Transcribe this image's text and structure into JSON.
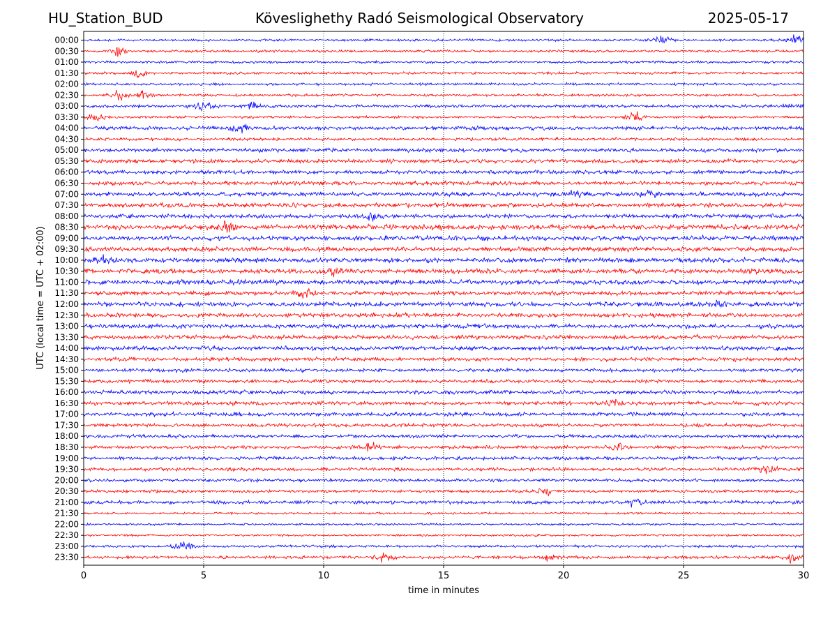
{
  "header": {
    "station": "HU_Station_BUD",
    "observatory": "Köveslighethy Radó Seismological Observatory",
    "date": "2025-05-17"
  },
  "chart_data": {
    "type": "line",
    "title": "Köveslighethy Radó Seismological Observatory",
    "xlabel": "time in minutes",
    "ylabel": "UTC (local time = UTC + 02:00)",
    "xlim": [
      0,
      30
    ],
    "xticks": [
      "0",
      "5",
      "10",
      "15",
      "20",
      "25",
      "30"
    ],
    "grid": "vertical dotted at x = 5, 10, 15, 20, 25",
    "series_colors": [
      "#0000ff",
      "#ff0000"
    ],
    "row_labels": [
      "00:00",
      "00:30",
      "01:00",
      "01:30",
      "02:00",
      "02:30",
      "03:00",
      "03:30",
      "04:00",
      "04:30",
      "05:00",
      "05:30",
      "06:00",
      "06:30",
      "07:00",
      "07:30",
      "08:00",
      "08:30",
      "09:00",
      "09:30",
      "10:00",
      "10:30",
      "11:00",
      "11:30",
      "12:00",
      "12:30",
      "13:00",
      "13:30",
      "14:00",
      "14:30",
      "15:00",
      "15:30",
      "16:00",
      "16:30",
      "17:00",
      "17:30",
      "18:00",
      "18:30",
      "19:00",
      "19:30",
      "20:00",
      "20:30",
      "21:00",
      "21:30",
      "22:00",
      "22:30",
      "23:00",
      "23:30"
    ],
    "row_amplitude": [
      0.3,
      0.3,
      0.3,
      0.3,
      0.3,
      0.3,
      0.35,
      0.3,
      0.45,
      0.35,
      0.45,
      0.45,
      0.45,
      0.45,
      0.5,
      0.5,
      0.5,
      0.6,
      0.55,
      0.55,
      0.55,
      0.55,
      0.55,
      0.5,
      0.55,
      0.5,
      0.5,
      0.5,
      0.5,
      0.45,
      0.4,
      0.4,
      0.45,
      0.45,
      0.45,
      0.4,
      0.4,
      0.4,
      0.4,
      0.4,
      0.35,
      0.35,
      0.4,
      0.25,
      0.25,
      0.25,
      0.3,
      0.35
    ],
    "bursts": [
      {
        "row": "00:00",
        "x": 24.0,
        "amp": 1.0
      },
      {
        "row": "00:00",
        "x": 29.6,
        "amp": 0.9
      },
      {
        "row": "00:30",
        "x": 1.5,
        "amp": 1.0
      },
      {
        "row": "01:30",
        "x": 2.3,
        "amp": 0.9
      },
      {
        "row": "02:30",
        "x": 1.5,
        "amp": 1.0
      },
      {
        "row": "02:30",
        "x": 2.5,
        "amp": 0.8
      },
      {
        "row": "03:00",
        "x": 5.0,
        "amp": 0.9
      },
      {
        "row": "03:00",
        "x": 7.0,
        "amp": 0.8
      },
      {
        "row": "03:00",
        "x": 29.5,
        "amp": 0.8
      },
      {
        "row": "03:30",
        "x": 0.5,
        "amp": 0.9
      },
      {
        "row": "03:30",
        "x": 23.0,
        "amp": 0.9
      },
      {
        "row": "04:00",
        "x": 6.5,
        "amp": 1.1
      },
      {
        "row": "07:00",
        "x": 20.5,
        "amp": 0.8
      },
      {
        "row": "07:00",
        "x": 23.5,
        "amp": 0.9
      },
      {
        "row": "08:00",
        "x": 12.0,
        "amp": 0.9
      },
      {
        "row": "08:30",
        "x": 6.0,
        "amp": 1.0
      },
      {
        "row": "10:00",
        "x": 0.8,
        "amp": 0.9
      },
      {
        "row": "10:30",
        "x": 10.5,
        "amp": 0.9
      },
      {
        "row": "11:30",
        "x": 9.2,
        "amp": 0.9
      },
      {
        "row": "12:00",
        "x": 26.5,
        "amp": 0.8
      },
      {
        "row": "16:30",
        "x": 22.0,
        "amp": 0.8
      },
      {
        "row": "18:30",
        "x": 12.0,
        "amp": 1.0
      },
      {
        "row": "18:30",
        "x": 22.2,
        "amp": 0.8
      },
      {
        "row": "19:30",
        "x": 28.5,
        "amp": 0.9
      },
      {
        "row": "20:30",
        "x": 19.2,
        "amp": 0.9
      },
      {
        "row": "21:00",
        "x": 23.0,
        "amp": 0.9
      },
      {
        "row": "23:00",
        "x": 4.2,
        "amp": 1.1
      },
      {
        "row": "23:30",
        "x": 12.5,
        "amp": 0.9
      },
      {
        "row": "23:30",
        "x": 19.5,
        "amp": 0.9
      },
      {
        "row": "23:30",
        "x": 29.5,
        "amp": 0.9
      }
    ]
  }
}
